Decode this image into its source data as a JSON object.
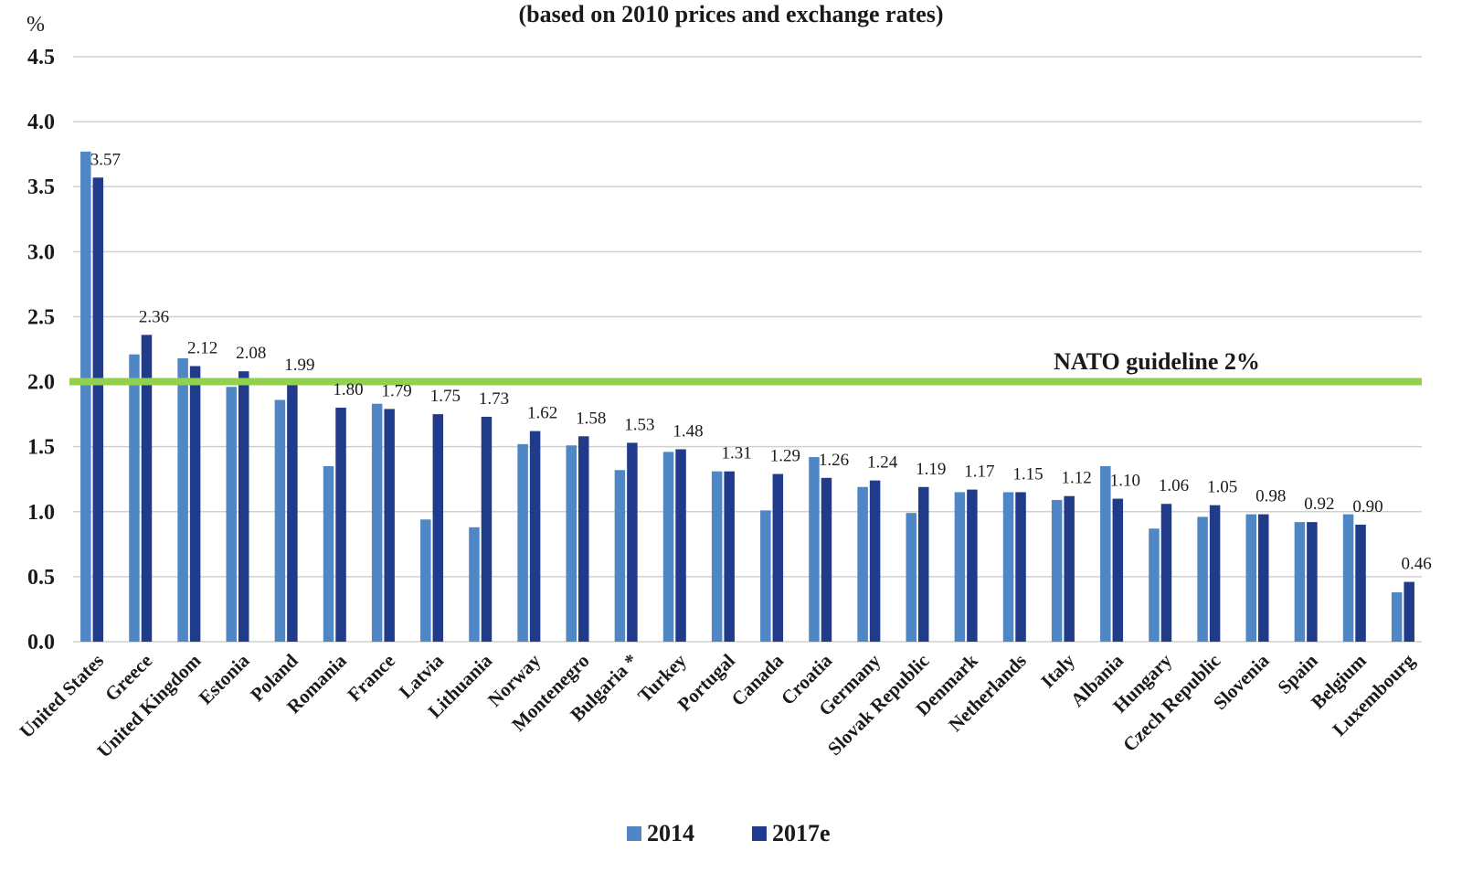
{
  "chart_data": {
    "type": "bar",
    "subtitle": "(based on 2010 prices and exchange rates)",
    "ylabel": "%",
    "ylim": [
      0,
      4.5
    ],
    "yticks": [
      "0.0",
      "0.5",
      "1.0",
      "1.5",
      "2.0",
      "2.5",
      "3.0",
      "3.5",
      "4.0",
      "4.5"
    ],
    "grid": true,
    "legend_position": "bottom",
    "categories": [
      "United States",
      "Greece",
      "United Kingdom",
      "Estonia",
      "Poland",
      "Romania",
      "France",
      "Latvia",
      "Lithuania",
      "Norway",
      "Montenegro",
      "Bulgaria *",
      "Turkey",
      "Portugal",
      "Canada",
      "Croatia",
      "Germany",
      "Slovak Republic",
      "Denmark",
      "Netherlands",
      "Italy",
      "Albania",
      "Hungary",
      "Czech Republic",
      "Slovenia",
      "Spain",
      "Belgium",
      "Luxembourg"
    ],
    "series": [
      {
        "name": "2014",
        "color": "#4f86c6",
        "values": [
          3.77,
          2.21,
          2.18,
          1.96,
          1.86,
          1.35,
          1.83,
          0.94,
          0.88,
          1.52,
          1.51,
          1.32,
          1.46,
          1.31,
          1.01,
          1.42,
          1.19,
          0.99,
          1.15,
          1.15,
          1.09,
          1.35,
          0.87,
          0.96,
          0.98,
          0.92,
          0.98,
          0.38
        ]
      },
      {
        "name": "2017e",
        "color": "#1f3b8a",
        "values": [
          3.57,
          2.36,
          2.12,
          2.08,
          1.99,
          1.8,
          1.79,
          1.75,
          1.73,
          1.62,
          1.58,
          1.53,
          1.48,
          1.31,
          1.29,
          1.26,
          1.24,
          1.19,
          1.17,
          1.15,
          1.12,
          1.1,
          1.06,
          1.05,
          0.98,
          0.92,
          0.9,
          0.46
        ],
        "labels": [
          "3.57",
          "2.36",
          "2.12",
          "2.08",
          "1.99",
          "1.80",
          "1.79",
          "1.75",
          "1.73",
          "1.62",
          "1.58",
          "1.53",
          "1.48",
          "1.31",
          "1.29",
          "1.26",
          "1.24",
          "1.19",
          "1.17",
          "1.15",
          "1.12",
          "1.10",
          "1.06",
          "1.05",
          "0.98",
          "0.92",
          "0.90",
          "0.46"
        ]
      }
    ],
    "reference_line": {
      "value": 2.0,
      "label": "NATO guideline 2%",
      "color": "#92d050"
    }
  }
}
